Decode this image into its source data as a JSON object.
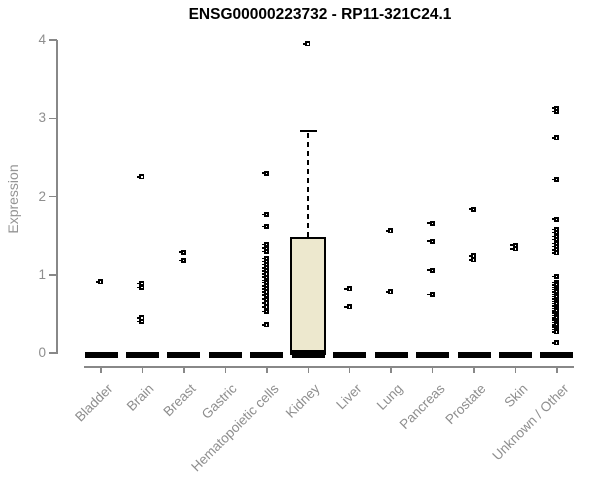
{
  "chart_data": {
    "type": "boxplot",
    "title": "ENSG00000223732 - RP11-321C24.1",
    "ylabel": "Expression",
    "xlabel": "",
    "ylim": [
      0,
      4
    ],
    "yticks": [
      0,
      1,
      2,
      3,
      4
    ],
    "grid": false,
    "legend": null,
    "colors": {
      "box_fill": "#EDE8CE",
      "axis": "#888888",
      "tick_label": "#8e8e8e",
      "marks": "#000000"
    },
    "categories": [
      "Bladder",
      "Brain",
      "Breast",
      "Gastric",
      "Hematopoietic cells",
      "Kidney",
      "Liver",
      "Lung",
      "Pancreas",
      "Prostate",
      "Skin",
      "Unknown / Other"
    ],
    "groups": [
      {
        "category": "Bladder",
        "box": {
          "q1": 0,
          "median": 0,
          "q3": 0,
          "whisker_low": 0,
          "whisker_high": 0
        },
        "outliers": [
          0.91
        ]
      },
      {
        "category": "Brain",
        "box": {
          "q1": 0,
          "median": 0,
          "q3": 0,
          "whisker_low": 0,
          "whisker_high": 0
        },
        "outliers": [
          2.25,
          0.89,
          0.84,
          0.45,
          0.4
        ]
      },
      {
        "category": "Breast",
        "box": {
          "q1": 0,
          "median": 0,
          "q3": 0,
          "whisker_low": 0,
          "whisker_high": 0
        },
        "outliers": [
          1.29,
          1.18
        ]
      },
      {
        "category": "Gastric",
        "box": {
          "q1": 0,
          "median": 0,
          "q3": 0,
          "whisker_low": 0,
          "whisker_high": 0
        },
        "outliers": []
      },
      {
        "category": "Hematopoietic cells",
        "box": {
          "q1": 0,
          "median": 0,
          "q3": 0,
          "whisker_low": 0,
          "whisker_high": 0
        },
        "outliers": [
          2.3,
          1.77,
          1.62,
          1.39,
          1.34,
          1.3,
          1.21,
          1.17,
          1.13,
          1.09,
          1.05,
          1.01,
          0.97,
          0.93,
          0.9,
          0.86,
          0.82,
          0.78,
          0.74,
          0.69,
          0.64,
          0.59,
          0.53,
          0.36
        ]
      },
      {
        "category": "Kidney",
        "box": {
          "q1": 0,
          "median": 0,
          "q3": 1.48,
          "whisker_low": 0,
          "whisker_high": 2.84
        },
        "outliers": [
          3.95
        ]
      },
      {
        "category": "Liver",
        "box": {
          "q1": 0,
          "median": 0,
          "q3": 0,
          "whisker_low": 0,
          "whisker_high": 0
        },
        "outliers": [
          0.82,
          0.59
        ]
      },
      {
        "category": "Lung",
        "box": {
          "q1": 0,
          "median": 0,
          "q3": 0,
          "whisker_low": 0,
          "whisker_high": 0
        },
        "outliers": [
          1.56,
          0.78
        ]
      },
      {
        "category": "Pancreas",
        "box": {
          "q1": 0,
          "median": 0,
          "q3": 0,
          "whisker_low": 0,
          "whisker_high": 0
        },
        "outliers": [
          1.66,
          1.43,
          1.06,
          0.75
        ]
      },
      {
        "category": "Prostate",
        "box": {
          "q1": 0,
          "median": 0,
          "q3": 0,
          "whisker_low": 0,
          "whisker_high": 0
        },
        "outliers": [
          1.84,
          1.24,
          1.19
        ]
      },
      {
        "category": "Skin",
        "box": {
          "q1": 0,
          "median": 0,
          "q3": 0,
          "whisker_low": 0,
          "whisker_high": 0
        },
        "outliers": [
          1.38,
          1.33
        ]
      },
      {
        "category": "Unknown / Other",
        "box": {
          "q1": 0,
          "median": 0,
          "q3": 0,
          "whisker_low": 0,
          "whisker_high": 0
        },
        "outliers": [
          3.13,
          3.09,
          2.75,
          2.22,
          1.71,
          1.58,
          1.54,
          1.49,
          1.45,
          1.4,
          1.36,
          1.32,
          1.28,
          0.98,
          0.9,
          0.87,
          0.84,
          0.81,
          0.78,
          0.75,
          0.72,
          0.69,
          0.66,
          0.63,
          0.6,
          0.57,
          0.54,
          0.51,
          0.48,
          0.45,
          0.42,
          0.39,
          0.36,
          0.33,
          0.3,
          0.27,
          0.13
        ]
      }
    ]
  }
}
